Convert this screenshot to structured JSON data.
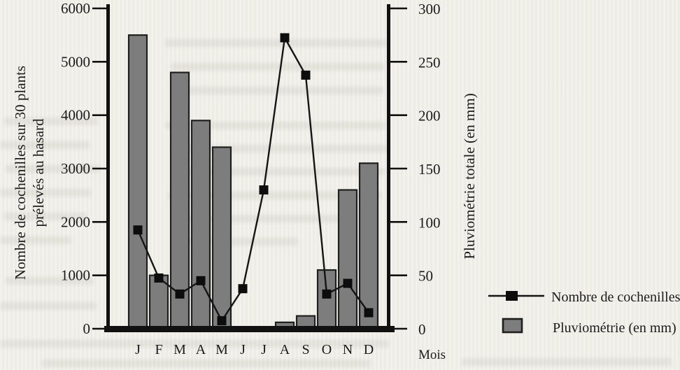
{
  "page": {
    "background_color": "#f1f0ea",
    "ink_color": "#1b1b1b"
  },
  "chart_data": {
    "type": "bar+line",
    "categories": [
      "J",
      "F",
      "M",
      "A",
      "M",
      "J",
      "J",
      "A",
      "S",
      "O",
      "N",
      "D"
    ],
    "x_axis": {
      "label": "Mois"
    },
    "left_axis": {
      "title_line1": "Nombre de cochenilles sur 30 plants",
      "title_line2": "prélevés au hasard",
      "min": 0,
      "max": 6000,
      "ticks": [
        0,
        1000,
        2000,
        3000,
        4000,
        5000,
        6000
      ]
    },
    "right_axis": {
      "title": "Pluviométrie totale (en mm)",
      "min": 0,
      "max": 300,
      "ticks": [
        0,
        50,
        100,
        150,
        200,
        250,
        300
      ]
    },
    "series": [
      {
        "name": "Nombre de cochenilles",
        "type": "line",
        "axis": "left",
        "marker": "filled-square",
        "color": "#151515",
        "values": [
          1850,
          950,
          650,
          900,
          150,
          750,
          2600,
          5450,
          4750,
          650,
          850,
          300
        ]
      },
      {
        "name": "Pluviométrie (en mm)",
        "type": "bar",
        "axis": "right",
        "fill": "#7d7d7d",
        "stroke": "#1f1f1f",
        "values": [
          275,
          50,
          240,
          195,
          170,
          0,
          0,
          6,
          12,
          55,
          130,
          155
        ]
      }
    ],
    "legend": {
      "position": "bottom-right",
      "entries": [
        {
          "label": "Nombre de cochenilles",
          "swatch": "line-with-square-marker"
        },
        {
          "label": "Pluviométrie (en mm)",
          "swatch": "gray-bar"
        }
      ]
    }
  }
}
